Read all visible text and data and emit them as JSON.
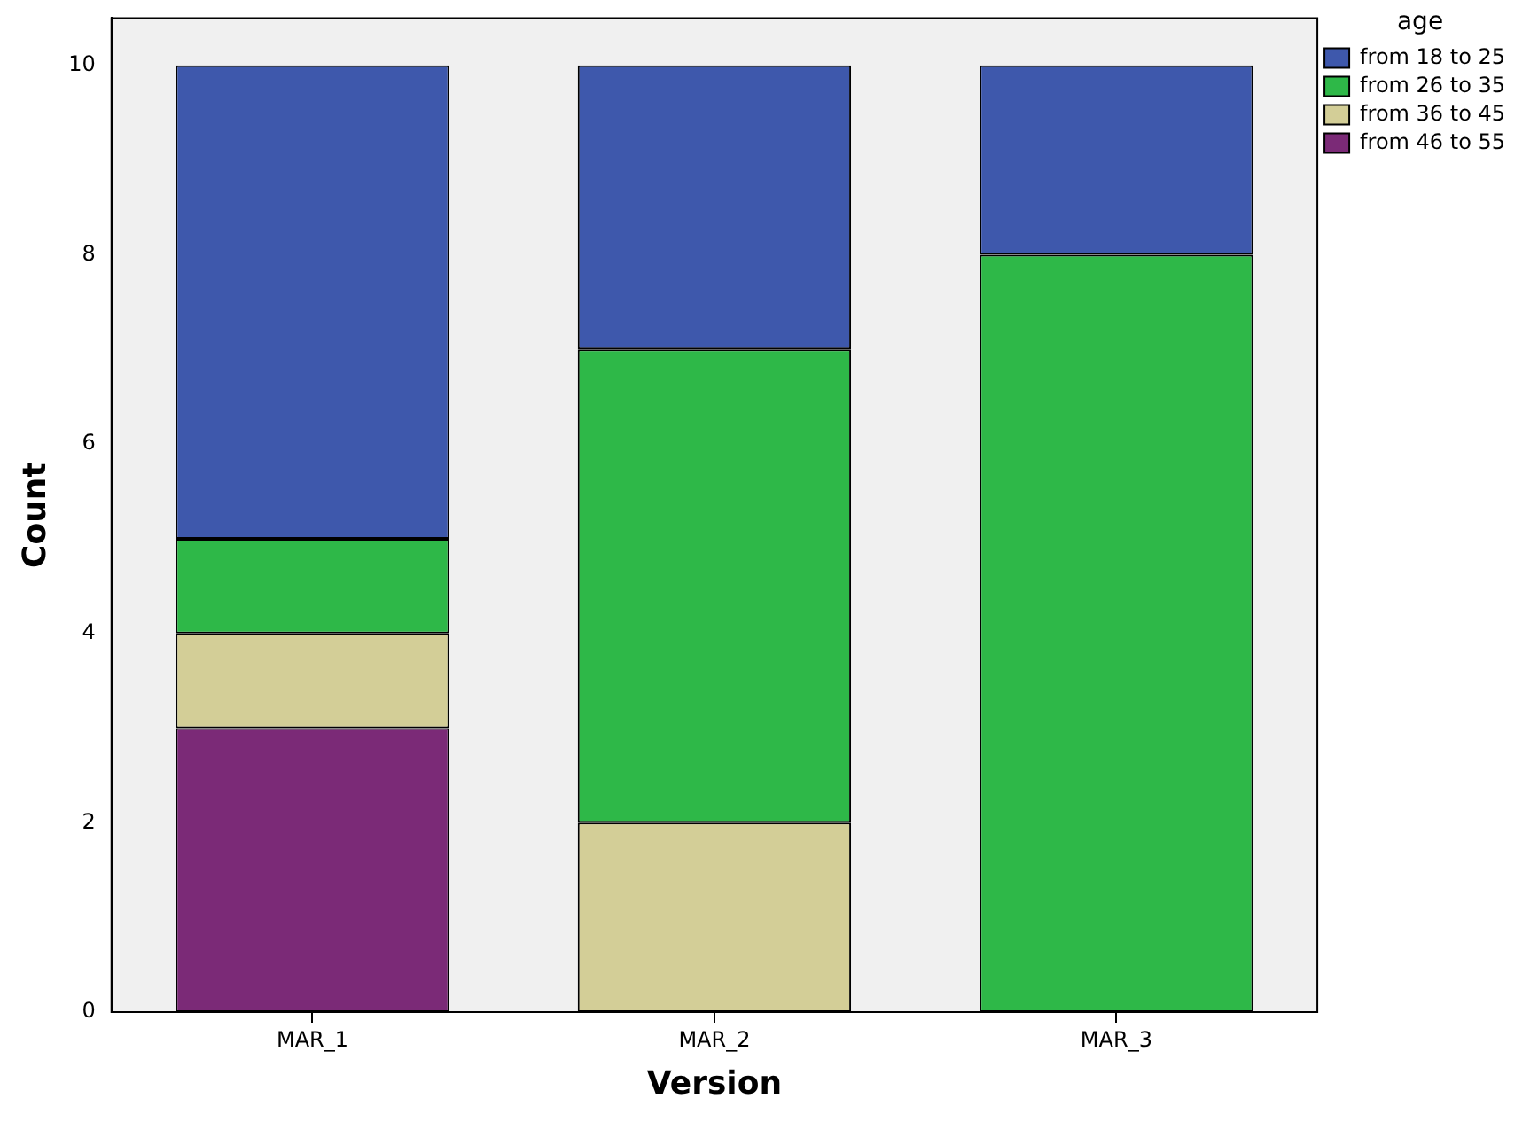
{
  "chart_data": {
    "type": "bar",
    "stacked": true,
    "xlabel": "Version",
    "ylabel": "Count",
    "legend_title": "age",
    "legend": "top right",
    "categories": [
      "MAR_1",
      "MAR_2",
      "MAR_3"
    ],
    "series": [
      {
        "name": "from 46 to 55",
        "color": "#7b2a77",
        "values": [
          3,
          0,
          0
        ]
      },
      {
        "name": "from 36 to 45",
        "color": "#d3ce97",
        "values": [
          1,
          2,
          0
        ]
      },
      {
        "name": "from 26 to 35",
        "color": "#2eb848",
        "values": [
          1,
          5,
          8
        ]
      },
      {
        "name": "from 18 to 25",
        "color": "#3e58ac",
        "values": [
          5,
          3,
          2
        ]
      }
    ],
    "ylim": [
      0,
      10.5
    ],
    "yticks": [
      0,
      2,
      4,
      6,
      8,
      10
    ],
    "grid": false
  }
}
